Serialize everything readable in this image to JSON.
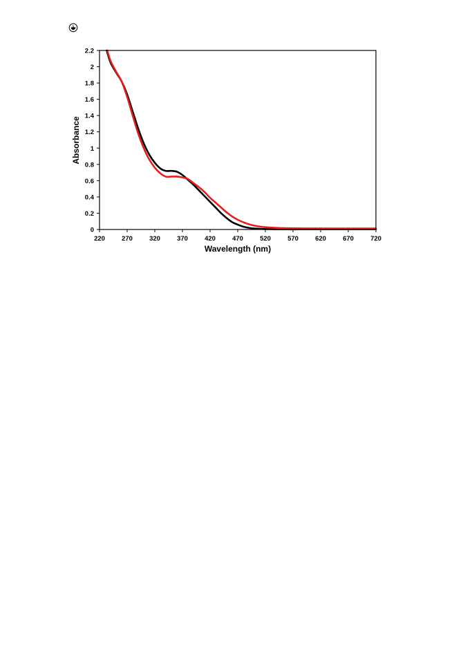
{
  "page": {
    "marker_icon": "circled-plus-icon"
  },
  "chart_data": {
    "type": "line",
    "title": "",
    "xlabel": "Wavelength (nm)",
    "ylabel": "Absorbance",
    "xlim": [
      220,
      720
    ],
    "ylim": [
      0,
      2.2
    ],
    "xticks": [
      220,
      270,
      320,
      370,
      420,
      470,
      520,
      570,
      620,
      670,
      720
    ],
    "yticks": [
      0,
      0.2,
      0.4,
      0.6,
      0.8,
      1,
      1.2,
      1.4,
      1.6,
      1.8,
      2,
      2.2
    ],
    "grid": false,
    "legend": "none",
    "series": [
      {
        "color": "#000000",
        "x": [
          233,
          240,
          250,
          260,
          270,
          280,
          290,
          300,
          310,
          320,
          330,
          340,
          350,
          360,
          370,
          380,
          390,
          400,
          410,
          420,
          430,
          440,
          450,
          460,
          470,
          480,
          490,
          500,
          510,
          520,
          540,
          560,
          580,
          600,
          650,
          720
        ],
        "y": [
          2.2,
          2.05,
          1.93,
          1.82,
          1.66,
          1.45,
          1.24,
          1.06,
          0.92,
          0.82,
          0.75,
          0.72,
          0.72,
          0.71,
          0.67,
          0.61,
          0.55,
          0.48,
          0.41,
          0.34,
          0.27,
          0.2,
          0.14,
          0.09,
          0.06,
          0.035,
          0.02,
          0.012,
          0.008,
          0.005,
          0.003,
          0.002,
          0.002,
          0.002,
          0.002,
          0.002
        ]
      },
      {
        "color": "#e41d1d",
        "x": [
          234,
          240,
          250,
          260,
          270,
          280,
          290,
          300,
          310,
          320,
          330,
          340,
          350,
          360,
          370,
          380,
          390,
          400,
          410,
          420,
          430,
          440,
          450,
          460,
          470,
          480,
          490,
          500,
          510,
          520,
          540,
          560,
          580,
          600,
          650,
          720
        ],
        "y": [
          2.2,
          2.07,
          1.94,
          1.82,
          1.63,
          1.4,
          1.18,
          1.0,
          0.86,
          0.76,
          0.69,
          0.65,
          0.65,
          0.65,
          0.64,
          0.62,
          0.57,
          0.52,
          0.46,
          0.39,
          0.33,
          0.27,
          0.21,
          0.16,
          0.12,
          0.09,
          0.065,
          0.048,
          0.036,
          0.028,
          0.02,
          0.016,
          0.014,
          0.013,
          0.012,
          0.012
        ]
      }
    ]
  }
}
